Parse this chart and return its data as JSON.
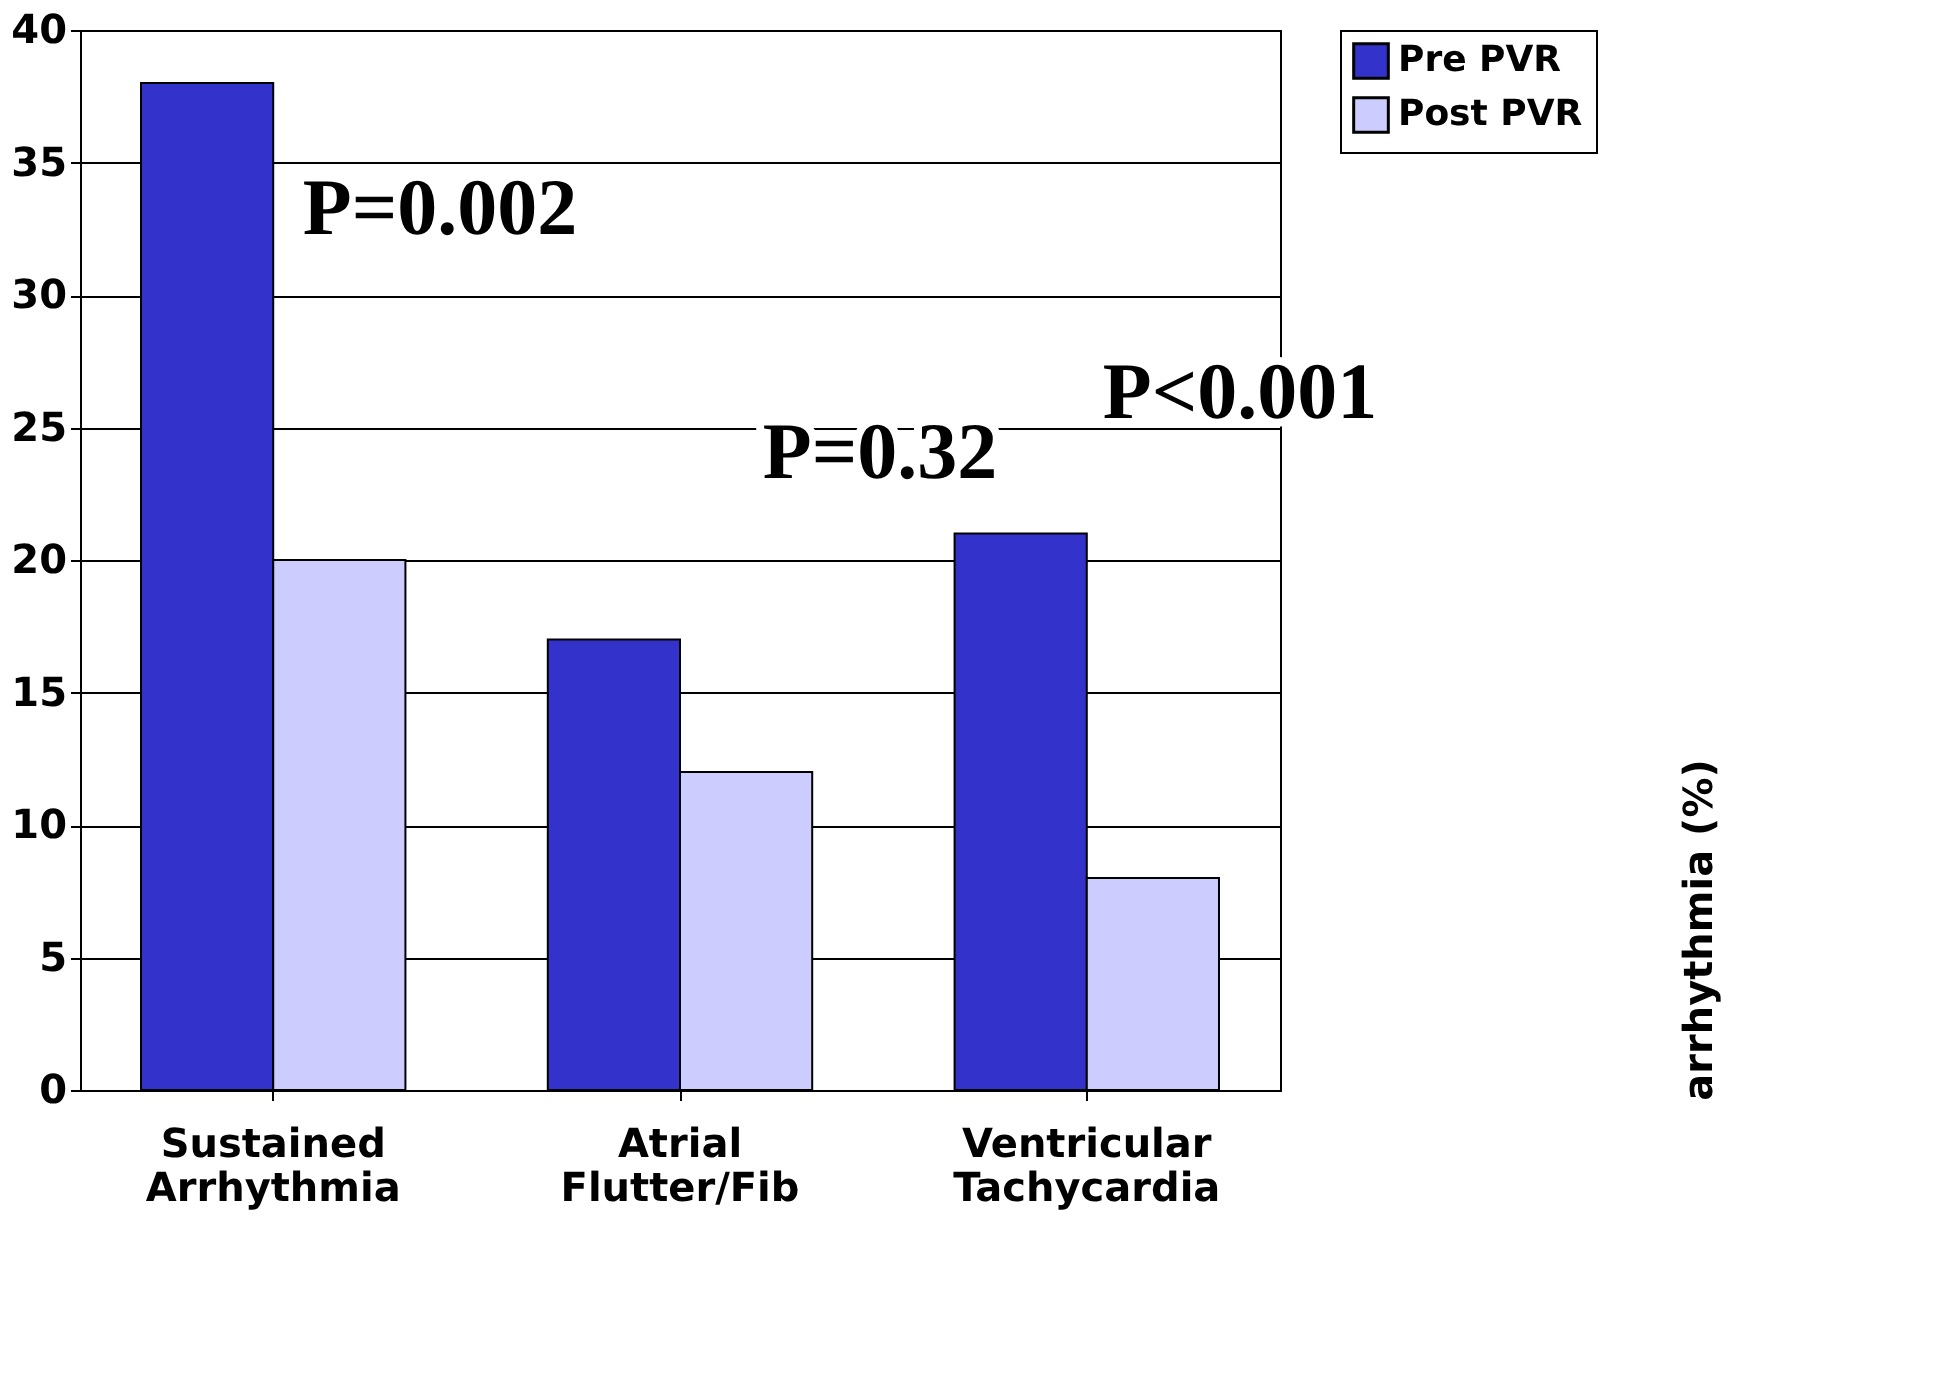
{
  "chart_data": {
    "type": "bar",
    "categories": [
      "Sustained\nArrhythmia",
      "Atrial\nFlutter/Fib",
      "Ventricular\nTachycardia"
    ],
    "series": [
      {
        "name": "Pre PVR",
        "color": "#3333cc",
        "values": [
          38,
          17,
          21
        ]
      },
      {
        "name": "Post PVR",
        "color": "#ccccff",
        "values": [
          20,
          12,
          8
        ]
      }
    ],
    "ylim": [
      0,
      40
    ],
    "yticks": [
      0,
      5,
      10,
      15,
      20,
      25,
      30,
      35,
      40
    ],
    "grid": "y",
    "legend": "right",
    "annotations": [
      "P=0.002",
      "P=0.32",
      "P<0.001",
      "arrhythmia (%)"
    ]
  }
}
